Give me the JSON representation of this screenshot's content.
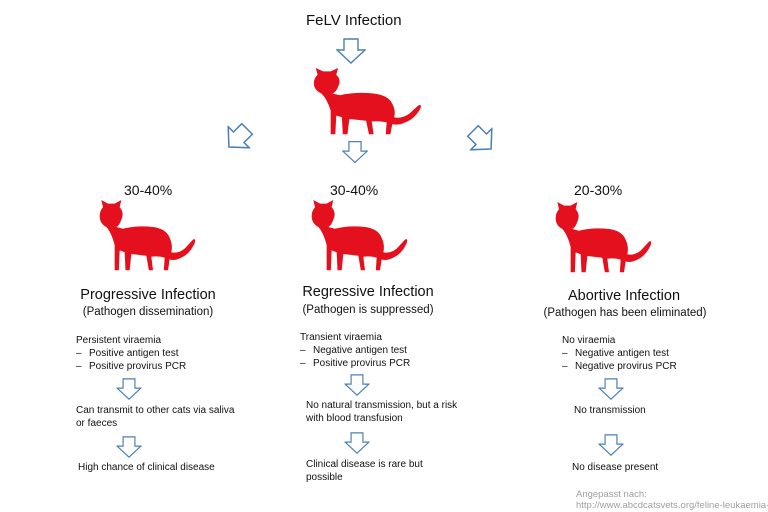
{
  "title": "FeLV Infection",
  "branches": [
    {
      "percentage": "30-40%",
      "name": "Progressive Infection",
      "subtitle": "(Pathogen dissemination)",
      "viraemia": "Persistent viraemia",
      "tests": [
        "Positive antigen test",
        "Positive provirus PCR"
      ],
      "transmission": "Can transmit to other cats via saliva or faeces",
      "outcome": "High chance of clinical disease"
    },
    {
      "percentage": "30-40%",
      "name": "Regressive Infection",
      "subtitle": "(Pathogen is suppressed)",
      "viraemia": "Transient viraemia",
      "tests": [
        "Negative antigen test",
        "Positive provirus PCR"
      ],
      "transmission": "No natural transmission, but a risk with blood transfusion",
      "outcome": "Clinical disease is rare but possible"
    },
    {
      "percentage": "20-30%",
      "name": "Abortive Infection",
      "subtitle": "(Pathogen has been eliminated)",
      "viraemia": "No viraemia",
      "tests": [
        "Negative antigen test",
        "Negative provirus PCR"
      ],
      "transmission": "No transmission",
      "outcome": "No disease present"
    }
  ],
  "source": {
    "label": "Angepasst nach:",
    "url": "http://www.abcdcatsvets.org/feline-leukaemia-"
  },
  "colors": {
    "cat": "#e4101e",
    "arrow_stroke": "#4a7fb5",
    "text": "#111111",
    "source_text": "#a0a0a0"
  },
  "icons": {
    "cat": "cat-icon",
    "arrow": "arrow-icon"
  }
}
